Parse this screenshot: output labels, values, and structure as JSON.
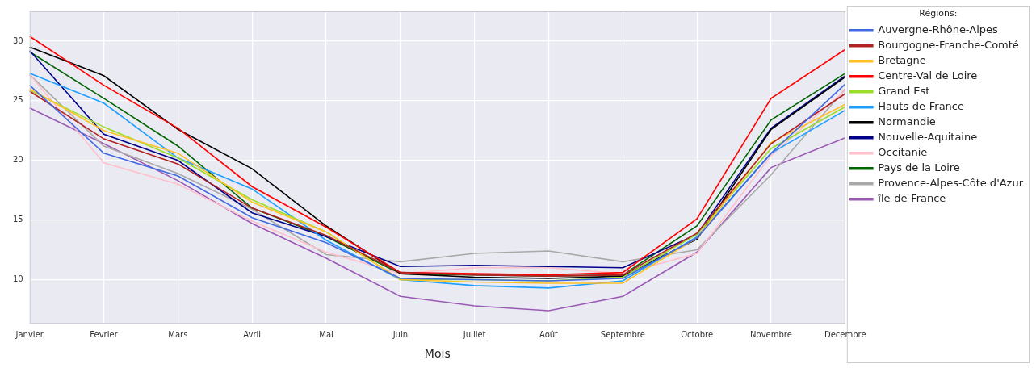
{
  "chart_data": {
    "type": "line",
    "x_label": "Mois",
    "legend_title": "Régions:",
    "legend": "right",
    "grid": true,
    "categories": [
      "Janvier",
      "Fevrier",
      "Mars",
      "Avril",
      "Mai",
      "Juin",
      "Juillet",
      "Août",
      "Septembre",
      "Octobre",
      "Novembre",
      "Decembre"
    ],
    "ylim": [
      6.3,
      32.5
    ],
    "yticks": [
      10,
      15,
      20,
      25,
      30
    ],
    "series": [
      {
        "name": "Auvergne-Rhône-Alpes",
        "color": "#4169e1",
        "values": [
          26.3,
          20.6,
          18.7,
          15.2,
          13.1,
          10.1,
          10.0,
          9.9,
          10.1,
          13.5,
          20.6,
          26.4
        ]
      },
      {
        "name": "Bourgogne-Franche-Comté",
        "color": "#b22222",
        "values": [
          25.8,
          21.8,
          19.7,
          16.0,
          13.7,
          10.6,
          10.4,
          10.3,
          10.4,
          13.9,
          21.4,
          25.6
        ]
      },
      {
        "name": "Bretagne",
        "color": "#ffc125",
        "values": [
          26.0,
          22.5,
          20.6,
          16.5,
          14.0,
          10.0,
          9.8,
          9.7,
          9.7,
          13.5,
          21.5,
          24.7
        ]
      },
      {
        "name": "Centre-Val de Loire",
        "color": "#ff0000",
        "values": [
          30.4,
          26.3,
          22.7,
          17.8,
          14.4,
          10.6,
          10.5,
          10.4,
          10.6,
          15.1,
          25.2,
          29.3
        ]
      },
      {
        "name": "Grand Est",
        "color": "#9ade2b",
        "values": [
          25.9,
          22.8,
          20.2,
          16.7,
          14.0,
          10.0,
          10.0,
          9.9,
          10.2,
          13.8,
          21.0,
          24.5
        ]
      },
      {
        "name": "Hauts-de-France",
        "color": "#1e9fff",
        "values": [
          27.3,
          24.8,
          20.2,
          17.6,
          13.3,
          10.0,
          9.5,
          9.3,
          9.9,
          13.6,
          20.6,
          24.2
        ]
      },
      {
        "name": "Normandie",
        "color": "#000000",
        "values": [
          29.5,
          27.1,
          22.6,
          19.3,
          14.5,
          10.5,
          10.2,
          10.1,
          10.3,
          13.4,
          22.6,
          27.0
        ]
      },
      {
        "name": "Nouvelle-Aquitaine",
        "color": "#00008b",
        "values": [
          29.2,
          22.2,
          20.0,
          15.6,
          13.6,
          11.1,
          11.2,
          11.1,
          11.0,
          13.8,
          22.7,
          27.1
        ]
      },
      {
        "name": "Occitanie",
        "color": "#ffc0cb",
        "values": [
          27.2,
          19.8,
          18.0,
          14.9,
          12.3,
          10.5,
          11.0,
          11.0,
          10.5,
          12.2,
          20.4,
          25.9
        ]
      },
      {
        "name": "Pays de la Loire",
        "color": "#006400",
        "values": [
          29.1,
          25.2,
          21.2,
          16.0,
          13.6,
          10.5,
          10.4,
          10.3,
          10.4,
          14.5,
          23.4,
          27.3
        ]
      },
      {
        "name": "Provence-Alpes-Côte d'Azur",
        "color": "#a9a9a9",
        "values": [
          27.2,
          21.2,
          18.9,
          15.9,
          12.1,
          11.5,
          12.2,
          12.4,
          11.5,
          12.5,
          18.8,
          26.0
        ]
      },
      {
        "name": "île-de-France",
        "color": "#9b59b6",
        "values": [
          24.4,
          21.4,
          18.3,
          14.7,
          11.8,
          8.6,
          7.8,
          7.4,
          8.6,
          12.3,
          19.4,
          21.9
        ]
      }
    ]
  }
}
